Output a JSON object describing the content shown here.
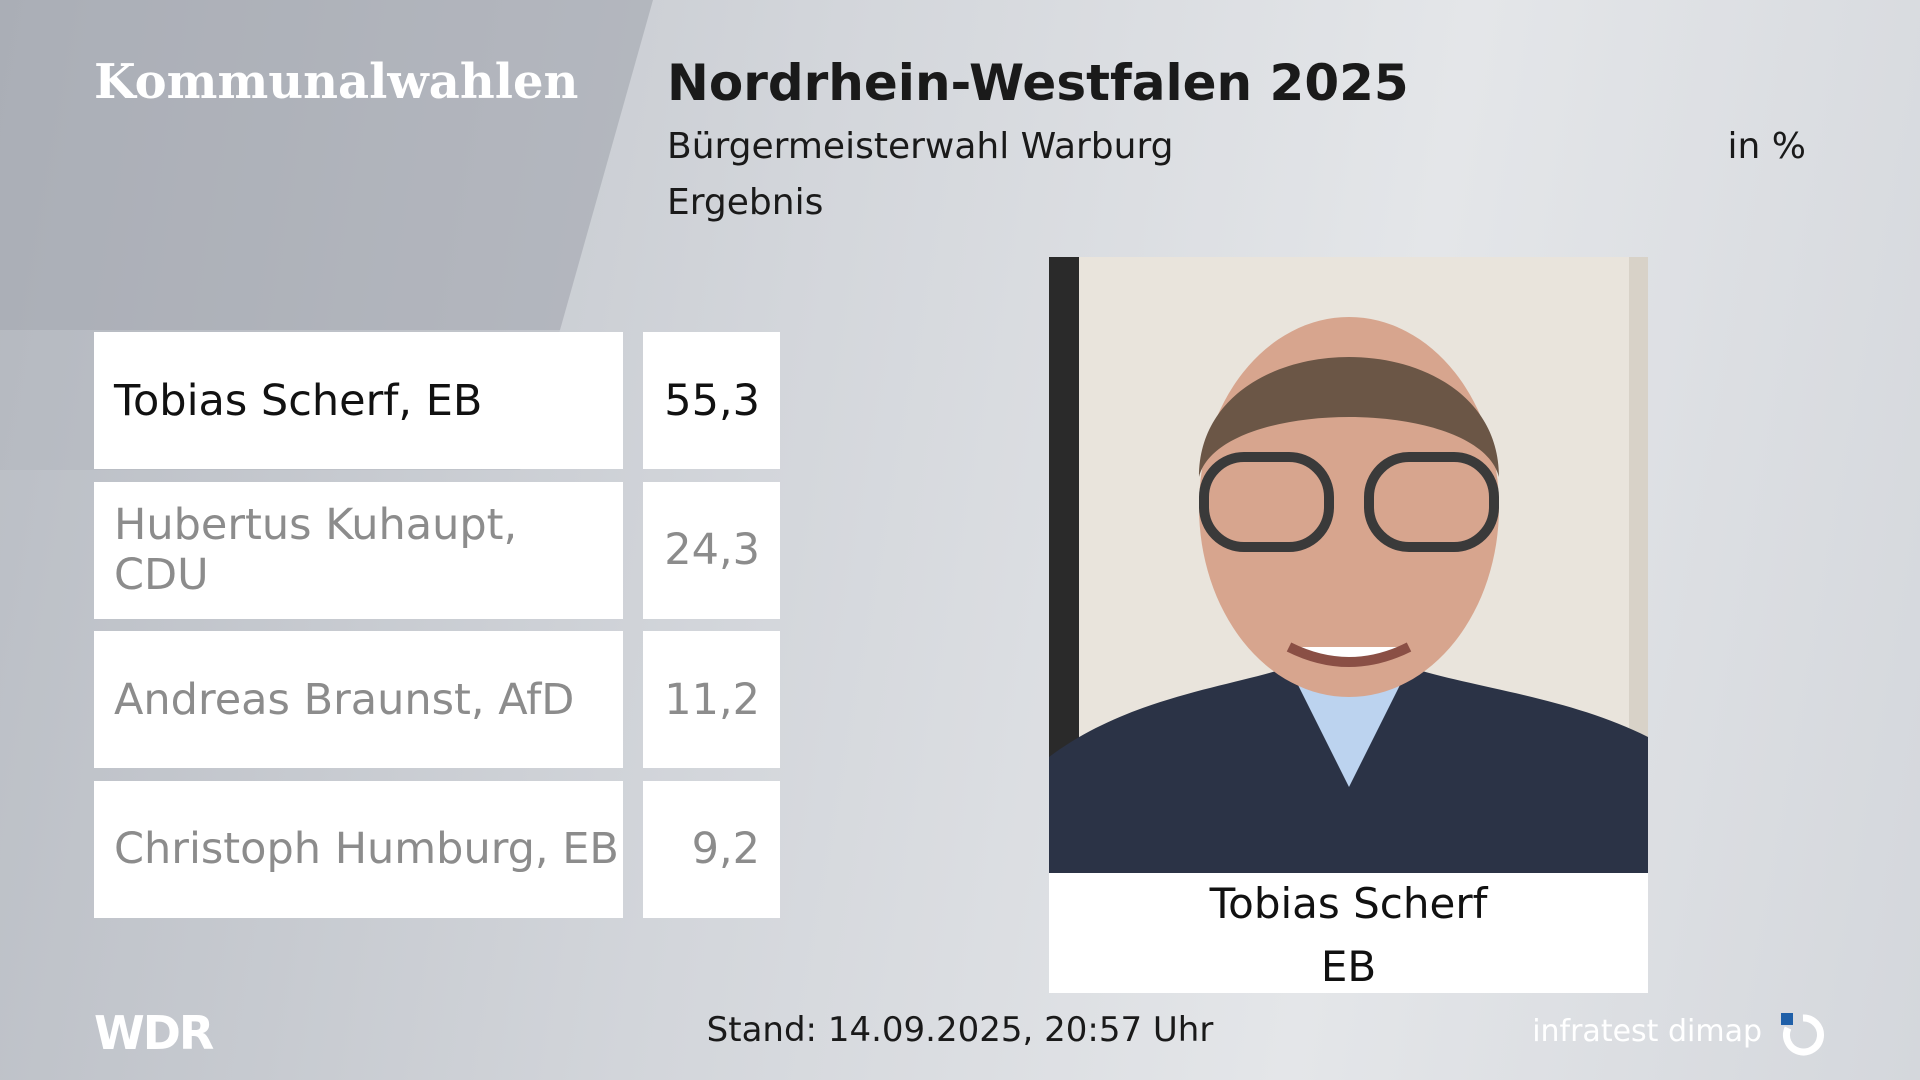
{
  "header": {
    "brand": "Kommunalwahlen",
    "title": "Nordrhein-Westfalen 2025",
    "subtitle": "Bürgermeisterwahl Warburg",
    "unit": "in %",
    "status": "Ergebnis"
  },
  "table": {
    "rows": [
      [
        "Tobias Scherf, EB",
        "55,3"
      ],
      [
        "Hubertus Kuhaupt, CDU",
        "24,3"
      ],
      [
        "Andreas Braunst, AfD",
        "11,2"
      ],
      [
        "Christoph Humburg, EB",
        "9,2"
      ]
    ]
  },
  "winner": {
    "name": "Tobias Scherf",
    "party": "EB"
  },
  "footer": {
    "logo": "WDR",
    "timestamp": "Stand: 14.09.2025, 20:57 Uhr",
    "source": "infratest dimap"
  }
}
